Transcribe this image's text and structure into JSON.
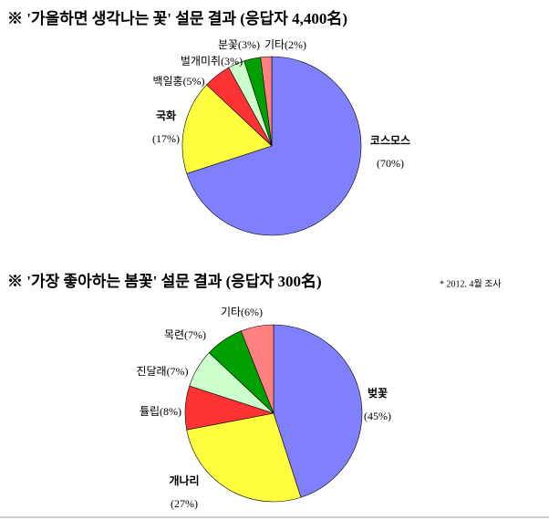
{
  "chart_data": [
    {
      "type": "pie",
      "title": "※ '가을하면 생각나는 꽃' 설문 결과 (응답자 4,400名)",
      "categories": [
        "코스모스",
        "국화",
        "백일홍",
        "벌개미취",
        "분꽃",
        "기타"
      ],
      "values": [
        70,
        17,
        5,
        3,
        3,
        2
      ],
      "value_labels": [
        "(70%)",
        "(17%)",
        "(5%)",
        "(3%)",
        "(3%)",
        "(2%)"
      ],
      "colors": [
        "#8080ff",
        "#ffff40",
        "#ff3333",
        "#ccffcc",
        "#00a000",
        "#ff8080"
      ]
    },
    {
      "type": "pie",
      "title": "※ '가장 좋아하는 봄꽃' 설문 결과 (응답자 300名)",
      "note": "* 2012. 4월 조사",
      "categories": [
        "벚꽃",
        "개나리",
        "튤립",
        "진달래",
        "목련",
        "기타"
      ],
      "values": [
        45,
        27,
        8,
        7,
        7,
        6
      ],
      "value_labels": [
        "(45%)",
        "(27%)",
        "(8%)",
        "(7%)",
        "(7%)",
        "(6%)"
      ],
      "colors": [
        "#8080ff",
        "#ffff40",
        "#ff3333",
        "#ccffcc",
        "#00a000",
        "#ff8080"
      ]
    }
  ]
}
